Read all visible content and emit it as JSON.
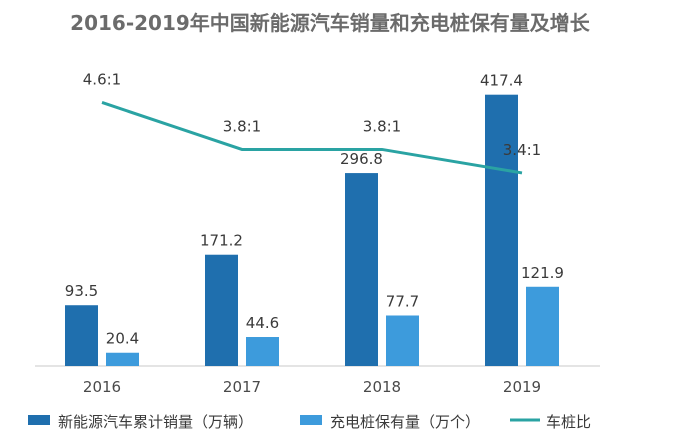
{
  "chart_data": {
    "type": "bar",
    "title": "2016-2019年中国新能源汽车销量和充电桩保有量及增长",
    "categories": [
      "2016",
      "2017",
      "2018",
      "2019"
    ],
    "series": [
      {
        "name": "新能源汽车累计销量（万辆）",
        "values": [
          93.5,
          171.2,
          296.8,
          417.4
        ],
        "color": "#1f6fae"
      },
      {
        "name": "充电桩保有量（万个）",
        "values": [
          20.4,
          44.6,
          77.7,
          121.9
        ],
        "color": "#3d9bdc"
      }
    ],
    "line_series": {
      "name": "车桩比",
      "values": [
        4.6,
        3.8,
        3.8,
        3.4
      ],
      "labels": [
        "4.6:1",
        "3.8:1",
        "3.8:1",
        "3.4:1"
      ],
      "color": "#2aa3a3"
    },
    "legend": "bottom",
    "grid": false,
    "ylim": [
      0,
      450
    ]
  }
}
